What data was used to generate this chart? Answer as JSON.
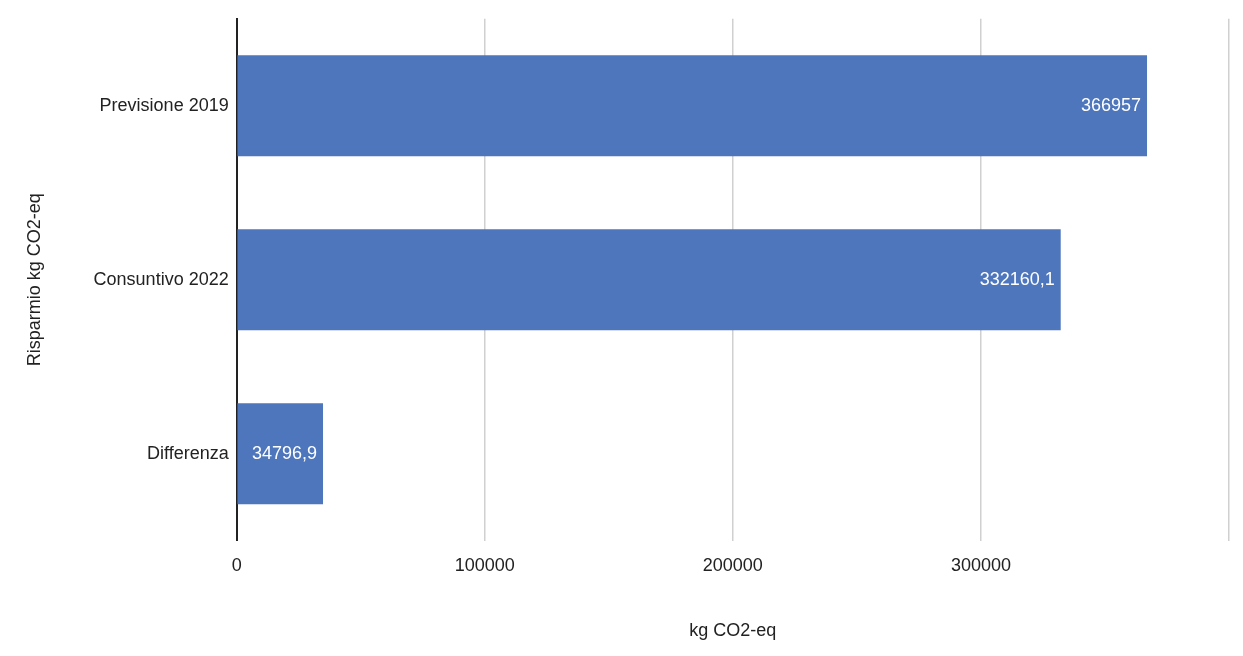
{
  "chart_data": {
    "type": "bar",
    "orientation": "horizontal",
    "xlabel": "kg CO2-eq",
    "ylabel": "Risparmio kg CO2-eq",
    "categories": [
      "Previsione 2019",
      "Consuntivo 2022",
      "Differenza"
    ],
    "values": [
      366957,
      332160.1,
      34796.9
    ],
    "value_labels": [
      "366957",
      "332160,1",
      "34796,9"
    ],
    "color": "#4e76bd",
    "xlim": [
      0,
      400000
    ],
    "xticks": [
      0,
      100000,
      200000,
      300000,
      {
        "value": 400000,
        "label": null
      }
    ],
    "grid": "x",
    "legend": false
  }
}
